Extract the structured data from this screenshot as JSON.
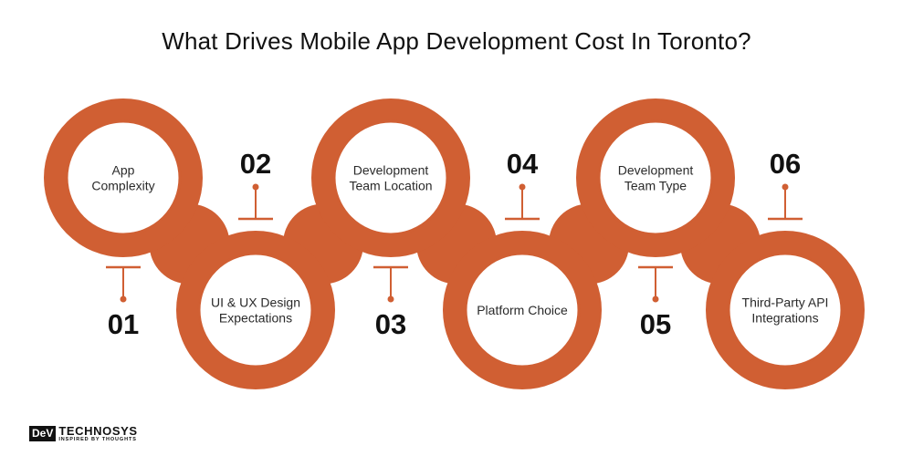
{
  "title": "What Drives Mobile App Development Cost In Toronto?",
  "colors": {
    "accent": "#d05f33",
    "text": "#111111"
  },
  "steps": [
    {
      "number": "01",
      "label_lines": [
        "App",
        "Complexity"
      ]
    },
    {
      "number": "02",
      "label_lines": [
        "UI & UX Design",
        "Expectations"
      ]
    },
    {
      "number": "03",
      "label_lines": [
        "Development",
        "Team Location"
      ]
    },
    {
      "number": "04",
      "label_lines": [
        "Platform Choice"
      ]
    },
    {
      "number": "05",
      "label_lines": [
        "Development",
        "Team Type"
      ]
    },
    {
      "number": "06",
      "label_lines": [
        "Third-Party API",
        "Integrations"
      ]
    }
  ],
  "logo": {
    "box_text": "DeV",
    "main_text": "TECHNOSYS",
    "tagline": "INSPIRED BY THOUGHTS"
  }
}
